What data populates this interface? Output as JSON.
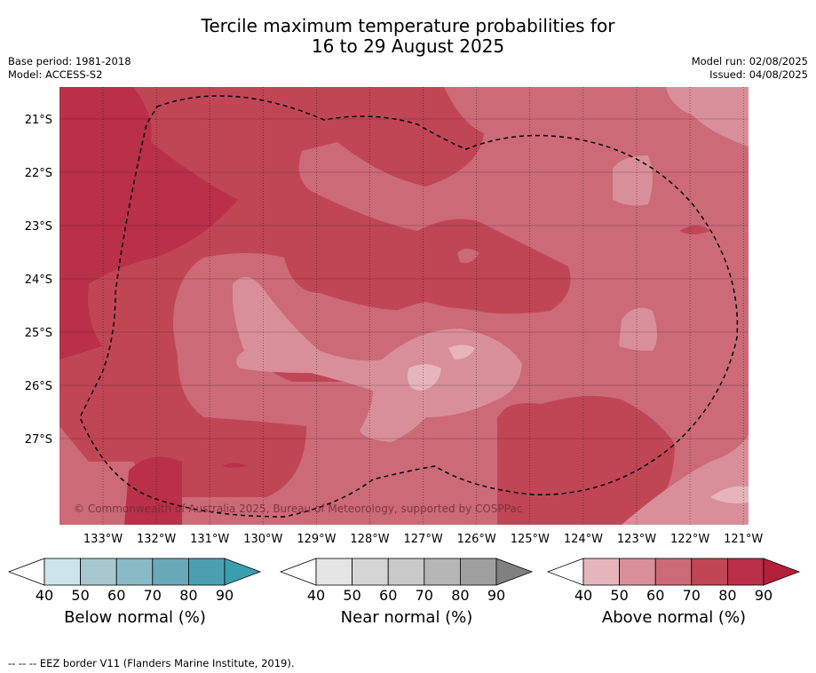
{
  "title_line1": "Tercile maximum temperature probabilities for",
  "title_line2": "16 to 29 August 2025",
  "base_period": "Base period: 1981-2018",
  "model": "Model: ACCESS-S2",
  "model_run": "Model run: 02/08/2025",
  "issued": "Issued: 04/08/2025",
  "copyright": "© Commonwealth of Australia 2025, Bureau of Meteorology, supported by COSPPac",
  "footer": "--  --  -- EEZ border V11 (Flanders Marine Institute, 2019).",
  "map": {
    "lon_labels": [
      "133°W",
      "132°W",
      "131°W",
      "130°W",
      "129°W",
      "128°W",
      "127°W",
      "126°W",
      "125°W",
      "124°W",
      "123°W",
      "122°W",
      "121°W"
    ],
    "lat_labels": [
      "21°S",
      "22°S",
      "23°S",
      "24°S",
      "25°S",
      "26°S",
      "27°S"
    ],
    "field": "Above normal probability (%)",
    "regions": [
      {
        "range": "80-90",
        "where": "west edge and northwest"
      },
      {
        "range": "70-80",
        "where": "north-central band, central band, southeast lobe"
      },
      {
        "range": "60-70",
        "where": "background over most of the domain"
      },
      {
        "range": "50-60",
        "where": "south-central patch, northeast corner, small eastern patches"
      },
      {
        "range": "40-50",
        "where": "small central patches and far southeast"
      }
    ],
    "border": "EEZ border (dashed)"
  },
  "colorbars": [
    {
      "label": "Below normal (%)",
      "ticks": [
        "40",
        "50",
        "60",
        "70",
        "80",
        "90"
      ],
      "colors": [
        "#cde5ea",
        "#a7c8cf",
        "#8abac5",
        "#6aaab8",
        "#4aa0b0",
        "#3a9eb0"
      ]
    },
    {
      "label": "Near normal (%)",
      "ticks": [
        "40",
        "50",
        "60",
        "70",
        "80",
        "90"
      ],
      "colors": [
        "#e5e5e5",
        "#d5d5d5",
        "#c9c9c9",
        "#b6b6b6",
        "#a0a0a0",
        "#808080"
      ]
    },
    {
      "label": "Above normal (%)",
      "ticks": [
        "40",
        "50",
        "60",
        "70",
        "80",
        "90"
      ],
      "colors": [
        "#e6b5bc",
        "#d98f99",
        "#cc6a78",
        "#c04656",
        "#b93048",
        "#b41f3a"
      ]
    }
  ]
}
